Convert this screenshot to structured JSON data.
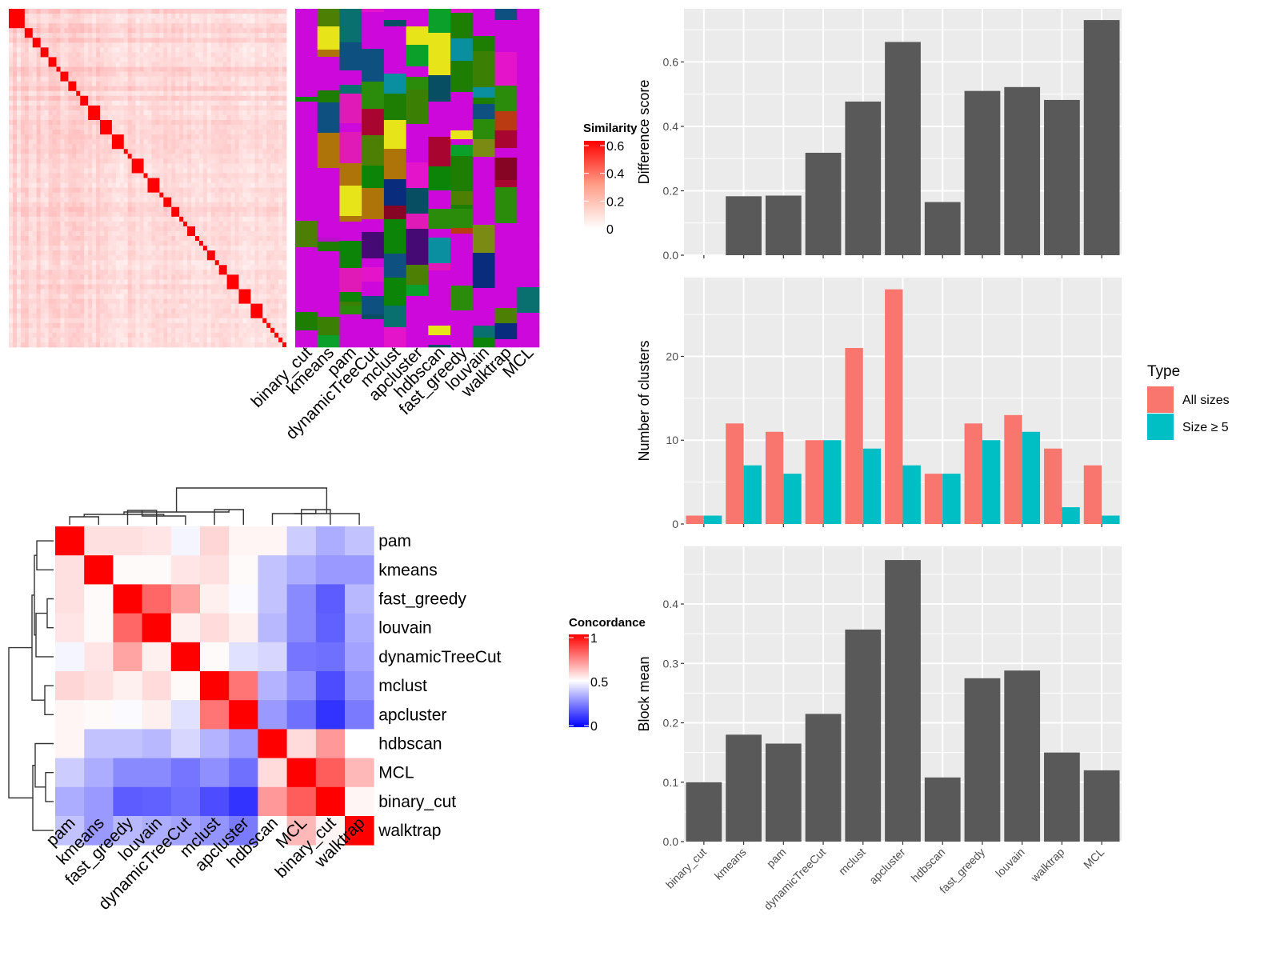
{
  "chart_data": [
    {
      "id": "similarity-heatmap",
      "type": "heatmap",
      "title": "",
      "description": "Consensus similarity matrix of ~75 terms ordered by clustering; strong red diagonal blocks",
      "legend": {
        "title": "Similarity",
        "ticks": [
          "0",
          "0.2",
          "0.4",
          "0.6"
        ],
        "range": [
          0,
          0.6
        ],
        "colors": [
          "#FFFFFF",
          "#FF0000"
        ]
      },
      "diagonal_block_sizes": [
        4,
        2,
        2,
        2,
        2,
        1,
        2,
        2,
        1,
        2,
        3,
        3,
        3,
        1,
        1,
        3,
        1,
        3,
        1,
        2,
        2,
        1,
        1,
        2,
        1,
        1,
        1,
        2,
        1,
        2,
        3,
        3,
        3,
        1,
        1,
        1,
        1,
        1,
        1
      ]
    },
    {
      "id": "cluster-label-matrix",
      "type": "heatmap",
      "description": "Cluster membership of each term under each method (categorical colors)",
      "columns": [
        "binary_cut",
        "kmeans",
        "pam",
        "dynamicTreeCut",
        "mclust",
        "apcluster",
        "hdbscan",
        "fast_greedy",
        "louvain",
        "walktrap",
        "MCL"
      ]
    },
    {
      "id": "concordance-heatmap",
      "type": "heatmap",
      "legend": {
        "title": "Concordance",
        "ticks": [
          "0",
          "0.5",
          "1"
        ],
        "range": [
          0,
          1
        ],
        "colors": [
          "#0000FF",
          "#FFFFFF",
          "#FF0000"
        ]
      },
      "rows": [
        "pam",
        "kmeans",
        "fast_greedy",
        "louvain",
        "dynamicTreeCut",
        "mclust",
        "apcluster",
        "hdbscan",
        "MCL",
        "binary_cut",
        "walktrap"
      ],
      "columns": [
        "pam",
        "kmeans",
        "fast_greedy",
        "louvain",
        "dynamicTreeCut",
        "mclust",
        "apcluster",
        "hdbscan",
        "MCL",
        "binary_cut",
        "walktrap"
      ],
      "values": [
        [
          1.0,
          0.56,
          0.56,
          0.55,
          0.48,
          0.58,
          0.52,
          0.52,
          0.4,
          0.34,
          0.38
        ],
        [
          0.56,
          1.0,
          0.51,
          0.51,
          0.55,
          0.56,
          0.51,
          0.38,
          0.34,
          0.3,
          0.3
        ],
        [
          0.56,
          0.51,
          1.0,
          0.8,
          0.68,
          0.53,
          0.49,
          0.38,
          0.27,
          0.18,
          0.36
        ],
        [
          0.55,
          0.51,
          0.8,
          1.0,
          0.53,
          0.57,
          0.53,
          0.36,
          0.27,
          0.19,
          0.34
        ],
        [
          0.48,
          0.55,
          0.68,
          0.53,
          1.0,
          0.51,
          0.44,
          0.42,
          0.23,
          0.22,
          0.32
        ],
        [
          0.58,
          0.56,
          0.53,
          0.57,
          0.51,
          1.0,
          0.77,
          0.35,
          0.28,
          0.15,
          0.29
        ],
        [
          0.52,
          0.51,
          0.49,
          0.53,
          0.44,
          0.77,
          1.0,
          0.3,
          0.22,
          0.1,
          0.24
        ],
        [
          0.52,
          0.38,
          0.38,
          0.36,
          0.42,
          0.35,
          0.3,
          1.0,
          0.57,
          0.7,
          0.5
        ],
        [
          0.4,
          0.34,
          0.27,
          0.27,
          0.23,
          0.28,
          0.22,
          0.57,
          1.0,
          0.82,
          0.64
        ],
        [
          0.34,
          0.3,
          0.18,
          0.19,
          0.22,
          0.15,
          0.1,
          0.7,
          0.82,
          1.0,
          0.52
        ],
        [
          0.38,
          0.3,
          0.36,
          0.34,
          0.32,
          0.29,
          0.24,
          0.5,
          0.64,
          0.52,
          1.0
        ]
      ]
    },
    {
      "id": "difference-score-chart",
      "type": "bar",
      "categories": [
        "binary_cut",
        "kmeans",
        "pam",
        "dynamicTreeCut",
        "mclust",
        "apcluster",
        "hdbscan",
        "fast_greedy",
        "louvain",
        "walktrap",
        "MCL"
      ],
      "values": [
        0.0,
        0.183,
        0.185,
        0.318,
        0.477,
        0.662,
        0.165,
        0.51,
        0.522,
        0.482,
        0.73
      ],
      "xlabel": "",
      "ylabel": "Difference score",
      "yticks": [
        "0.0",
        "0.2",
        "0.4",
        "0.6"
      ],
      "ylim": [
        0,
        0.765
      ],
      "grid": true
    },
    {
      "id": "cluster-count-chart",
      "type": "bar",
      "categories": [
        "binary_cut",
        "kmeans",
        "pam",
        "dynamicTreeCut",
        "mclust",
        "apcluster",
        "hdbscan",
        "fast_greedy",
        "louvain",
        "walktrap",
        "MCL"
      ],
      "series": [
        {
          "name": "All sizes",
          "color": "#F8766D",
          "values": [
            1,
            12,
            11,
            10,
            21,
            28,
            6,
            12,
            13,
            9,
            7
          ]
        },
        {
          "name": "Size ≥ 5",
          "color": "#00BFC4",
          "values": [
            1,
            7,
            6,
            10,
            9,
            7,
            6,
            10,
            11,
            2,
            1
          ]
        }
      ],
      "xlabel": "",
      "ylabel": "Number of clusters",
      "yticks": [
        "0",
        "10",
        "20"
      ],
      "ylim": [
        0,
        29.4
      ],
      "grid": true,
      "legend": {
        "title": "Type",
        "position": "right"
      }
    },
    {
      "id": "block-mean-chart",
      "type": "bar",
      "categories": [
        "binary_cut",
        "kmeans",
        "pam",
        "dynamicTreeCut",
        "mclust",
        "apcluster",
        "hdbscan",
        "fast_greedy",
        "louvain",
        "walktrap",
        "MCL"
      ],
      "values": [
        0.1,
        0.18,
        0.165,
        0.215,
        0.357,
        0.474,
        0.108,
        0.275,
        0.288,
        0.15,
        0.12
      ],
      "xlabel": "",
      "ylabel": "Block mean",
      "yticks": [
        "0.0",
        "0.1",
        "0.2",
        "0.3",
        "0.4"
      ],
      "ylim": [
        0,
        0.497
      ],
      "grid": true
    }
  ]
}
